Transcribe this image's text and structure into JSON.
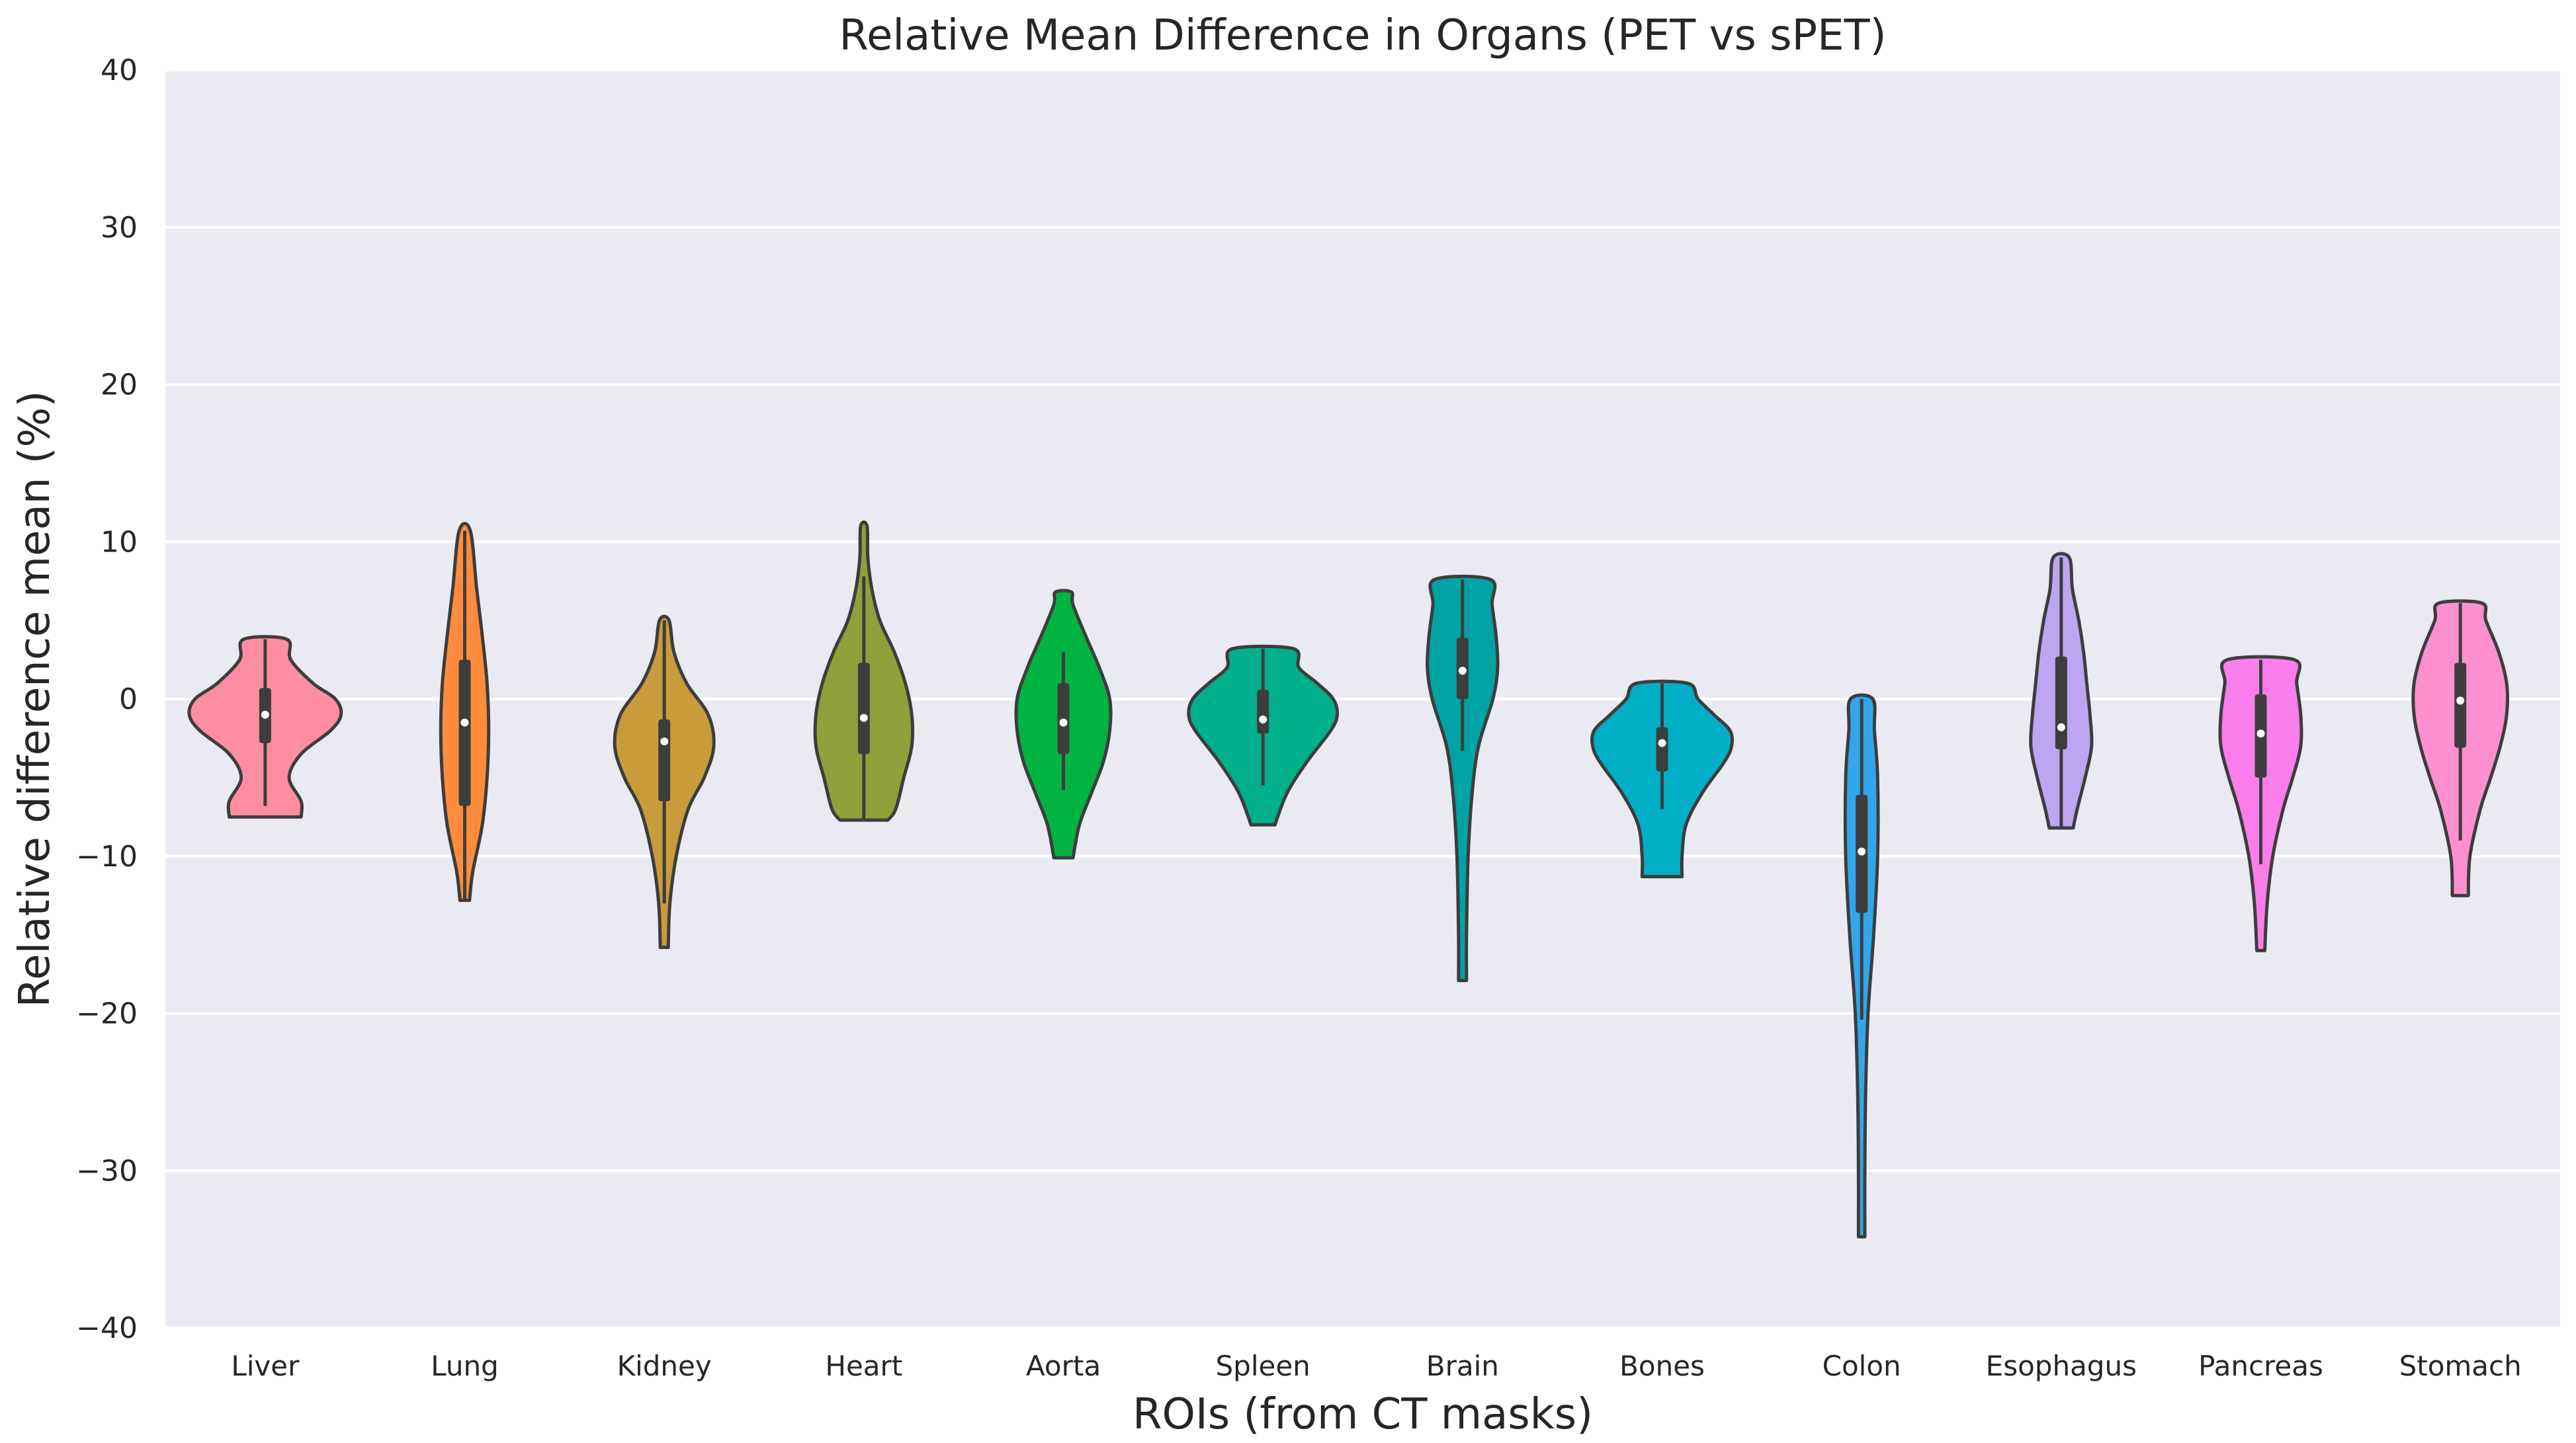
{
  "chart_data": {
    "type": "violin",
    "title": "Relative Mean Difference in Organs (PET vs sPET)",
    "xlabel": "ROIs (from CT masks)",
    "ylabel": "Relative difference mean (%)",
    "ylim": [
      -40,
      40
    ],
    "yticks": [
      -40,
      -30,
      -20,
      -10,
      0,
      10,
      20,
      30,
      40
    ],
    "ytick_labels": [
      "−40",
      "−30",
      "−20",
      "−10",
      "0",
      "10",
      "20",
      "30",
      "40"
    ],
    "grid": true,
    "categories": [
      "Liver",
      "Lung",
      "Kidney",
      "Heart",
      "Aorta",
      "Spleen",
      "Brain",
      "Bones",
      "Colon",
      "Esophagus",
      "Pancreas",
      "Stomach"
    ],
    "series": [
      {
        "name": "Liver",
        "color": "#ff8da1",
        "min": -7.5,
        "max": 3.8,
        "q1": -2.8,
        "median": -1.0,
        "q3": 0.7,
        "whisker_low": -6.8,
        "whisker_high": 3.8,
        "density": [
          [
            -7.5,
            0.45
          ],
          [
            -6.5,
            0.45
          ],
          [
            -5,
            0.3
          ],
          [
            -3.5,
            0.45
          ],
          [
            -2,
            0.82
          ],
          [
            -1,
            0.95
          ],
          [
            0,
            0.88
          ],
          [
            1,
            0.6
          ],
          [
            2.5,
            0.32
          ],
          [
            3.8,
            0.27
          ]
        ]
      },
      {
        "name": "Lung",
        "color": "#ff8c3c",
        "min": -12.8,
        "max": 10.7,
        "q1": -6.8,
        "median": -1.5,
        "q3": 2.5,
        "whisker_low": -12.8,
        "whisker_high": 10.7,
        "density": [
          [
            -12.8,
            0.06
          ],
          [
            -11,
            0.1
          ],
          [
            -8,
            0.22
          ],
          [
            -5,
            0.28
          ],
          [
            -2,
            0.3
          ],
          [
            1,
            0.28
          ],
          [
            4,
            0.22
          ],
          [
            7,
            0.15
          ],
          [
            10.7,
            0.07
          ]
        ]
      },
      {
        "name": "Kidney",
        "color": "#c89c3a",
        "min": -15.8,
        "max": 5.0,
        "q1": -6.5,
        "median": -2.7,
        "q3": -1.3,
        "whisker_low": -13.0,
        "whisker_high": 5.0,
        "density": [
          [
            -15.8,
            0.05
          ],
          [
            -13,
            0.07
          ],
          [
            -10,
            0.15
          ],
          [
            -7,
            0.3
          ],
          [
            -5,
            0.5
          ],
          [
            -3,
            0.62
          ],
          [
            -1,
            0.55
          ],
          [
            1,
            0.28
          ],
          [
            3,
            0.12
          ],
          [
            5,
            0.06
          ]
        ]
      },
      {
        "name": "Heart",
        "color": "#92a03c",
        "min": -7.7,
        "max": 11.0,
        "q1": -3.5,
        "median": -1.2,
        "q3": 2.3,
        "whisker_low": -7.7,
        "whisker_high": 7.8,
        "density": [
          [
            -7.7,
            0.3
          ],
          [
            -7,
            0.4
          ],
          [
            -5,
            0.5
          ],
          [
            -3,
            0.6
          ],
          [
            -1,
            0.6
          ],
          [
            1,
            0.52
          ],
          [
            3,
            0.38
          ],
          [
            5,
            0.2
          ],
          [
            7,
            0.1
          ],
          [
            9,
            0.05
          ],
          [
            11,
            0.04
          ]
        ]
      },
      {
        "name": "Aorta",
        "color": "#00b442",
        "min": -10.1,
        "max": 6.8,
        "q1": -3.5,
        "median": -1.5,
        "q3": 1.0,
        "whisker_low": -5.8,
        "whisker_high": 3.0,
        "density": [
          [
            -10.1,
            0.12
          ],
          [
            -8,
            0.2
          ],
          [
            -6,
            0.35
          ],
          [
            -4,
            0.5
          ],
          [
            -2,
            0.58
          ],
          [
            0,
            0.58
          ],
          [
            2,
            0.45
          ],
          [
            4,
            0.28
          ],
          [
            6,
            0.12
          ],
          [
            6.8,
            0.1
          ]
        ]
      },
      {
        "name": "Spleen",
        "color": "#00b08b",
        "min": -8.0,
        "max": 3.2,
        "q1": -2.2,
        "median": -1.3,
        "q3": 0.6,
        "whisker_low": -5.5,
        "whisker_high": 3.2,
        "density": [
          [
            -8,
            0.15
          ],
          [
            -6,
            0.3
          ],
          [
            -4,
            0.55
          ],
          [
            -2,
            0.85
          ],
          [
            -1,
            0.93
          ],
          [
            0,
            0.88
          ],
          [
            1,
            0.68
          ],
          [
            2,
            0.45
          ],
          [
            3.2,
            0.38
          ]
        ]
      },
      {
        "name": "Brain",
        "color": "#00a3a3",
        "min": -17.9,
        "max": 7.6,
        "q1": 0.0,
        "median": 1.8,
        "q3": 3.9,
        "whisker_low": -3.3,
        "whisker_high": 7.6,
        "density": [
          [
            -17.9,
            0.05
          ],
          [
            -15,
            0.05
          ],
          [
            -10,
            0.07
          ],
          [
            -6,
            0.12
          ],
          [
            -3,
            0.2
          ],
          [
            0,
            0.38
          ],
          [
            2,
            0.44
          ],
          [
            4,
            0.42
          ],
          [
            6,
            0.37
          ],
          [
            7.6,
            0.35
          ]
        ]
      },
      {
        "name": "Bones",
        "color": "#00aec6",
        "min": -11.3,
        "max": 1.0,
        "q1": -4.6,
        "median": -2.8,
        "q3": -1.8,
        "whisker_low": -7.0,
        "whisker_high": 1.0,
        "density": [
          [
            -11.3,
            0.25
          ],
          [
            -10,
            0.25
          ],
          [
            -8,
            0.3
          ],
          [
            -6,
            0.5
          ],
          [
            -4,
            0.78
          ],
          [
            -3,
            0.87
          ],
          [
            -2,
            0.85
          ],
          [
            -1,
            0.65
          ],
          [
            0,
            0.45
          ],
          [
            1,
            0.32
          ]
        ]
      },
      {
        "name": "Colon",
        "color": "#32a6ec",
        "min": -34.2,
        "max": 0.0,
        "q1": -13.6,
        "median": -9.7,
        "q3": -6.1,
        "whisker_low": -20.4,
        "whisker_high": 0.0,
        "density": [
          [
            -34.2,
            0.04
          ],
          [
            -30,
            0.04
          ],
          [
            -25,
            0.05
          ],
          [
            -20,
            0.08
          ],
          [
            -15,
            0.15
          ],
          [
            -10,
            0.2
          ],
          [
            -5,
            0.2
          ],
          [
            -2,
            0.16
          ],
          [
            0,
            0.14
          ]
        ]
      },
      {
        "name": "Esophagus",
        "color": "#bca6f2",
        "min": -8.2,
        "max": 9.0,
        "q1": -3.2,
        "median": -1.8,
        "q3": 2.7,
        "whisker_low": -8.2,
        "whisker_high": 9.0,
        "density": [
          [
            -8.2,
            0.15
          ],
          [
            -7,
            0.2
          ],
          [
            -5,
            0.3
          ],
          [
            -3,
            0.38
          ],
          [
            -1,
            0.36
          ],
          [
            1,
            0.32
          ],
          [
            3,
            0.28
          ],
          [
            5,
            0.22
          ],
          [
            7,
            0.14
          ],
          [
            9,
            0.1
          ]
        ]
      },
      {
        "name": "Pancreas",
        "color": "#fa7dec",
        "min": -16.0,
        "max": 2.5,
        "q1": -5.0,
        "median": -2.2,
        "q3": 0.3,
        "whisker_low": -10.5,
        "whisker_high": 2.5,
        "density": [
          [
            -16,
            0.05
          ],
          [
            -13,
            0.08
          ],
          [
            -10,
            0.15
          ],
          [
            -7,
            0.28
          ],
          [
            -5,
            0.4
          ],
          [
            -3,
            0.5
          ],
          [
            -1,
            0.5
          ],
          [
            1,
            0.45
          ],
          [
            2.5,
            0.42
          ]
        ]
      },
      {
        "name": "Stomach",
        "color": "#ff90d0",
        "min": -12.5,
        "max": 6.1,
        "q1": -3.1,
        "median": -0.1,
        "q3": 2.3,
        "whisker_low": -9.0,
        "whisker_high": 6.1,
        "density": [
          [
            -12.5,
            0.1
          ],
          [
            -10,
            0.12
          ],
          [
            -7,
            0.25
          ],
          [
            -5,
            0.38
          ],
          [
            -3,
            0.5
          ],
          [
            -1,
            0.58
          ],
          [
            1,
            0.58
          ],
          [
            3,
            0.48
          ],
          [
            5,
            0.32
          ],
          [
            6.1,
            0.27
          ]
        ]
      }
    ]
  }
}
